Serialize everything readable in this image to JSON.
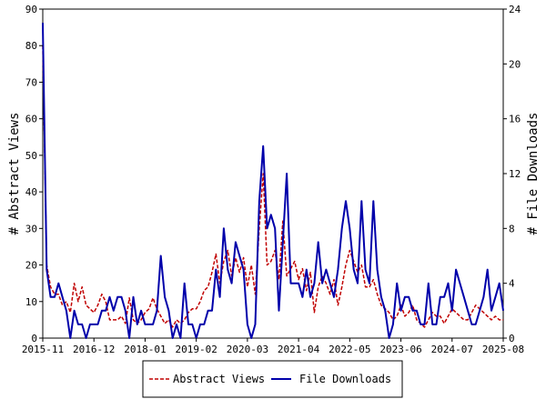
{
  "chart_data": {
    "type": "line",
    "title": "",
    "y_left_label": "# Abstract Views",
    "y_right_label": "# File Downloads",
    "y_left_ticks": [
      0,
      10,
      20,
      30,
      40,
      50,
      60,
      70,
      80,
      90
    ],
    "y_left_range": [
      0,
      90
    ],
    "y_right_ticks": [
      0,
      4,
      8,
      12,
      16,
      20,
      24
    ],
    "y_right_range": [
      0,
      24
    ],
    "x_tick_labels": [
      "2015-11",
      "2016-12",
      "2018-01",
      "2019-02",
      "2020-03",
      "2021-04",
      "2022-05",
      "2023-06",
      "2024-07",
      "2025-08"
    ],
    "x_range_months": [
      0,
      117
    ],
    "legend_position": "bottom",
    "grid": false,
    "series": [
      {
        "name": "Abstract Views",
        "axis": "left",
        "color": "#c00000",
        "style": "dashed",
        "x": [
          0,
          1,
          2,
          3,
          4,
          5,
          6,
          7,
          8,
          9,
          10,
          11,
          12,
          13,
          14,
          15,
          16,
          17,
          18,
          19,
          20,
          21,
          22,
          23,
          24,
          25,
          26,
          27,
          28,
          29,
          30,
          31,
          32,
          33,
          34,
          35,
          36,
          37,
          38,
          39,
          40,
          41,
          42,
          43,
          44,
          45,
          46,
          47,
          48,
          49,
          50,
          51,
          52,
          53,
          54,
          55,
          56,
          57,
          58,
          59,
          60,
          61,
          62,
          63,
          64,
          65,
          66,
          67,
          68,
          69,
          70,
          71,
          72,
          73,
          74,
          75,
          76,
          77,
          78,
          79,
          80,
          81,
          82,
          83,
          84,
          85,
          86,
          87,
          88,
          89,
          90,
          91,
          92,
          93,
          94,
          95,
          96,
          97,
          98,
          99,
          100,
          101,
          102,
          103,
          104,
          105,
          106,
          107,
          108,
          109,
          110,
          111,
          112,
          113,
          114,
          115,
          116,
          117
        ],
        "values": [
          80,
          20,
          14,
          12,
          12,
          9,
          10,
          7,
          15,
          10,
          14,
          9,
          8,
          7,
          9,
          12,
          10,
          5,
          5,
          5,
          6,
          4,
          11,
          5,
          4,
          5,
          7,
          8,
          11,
          8,
          6,
          4,
          5,
          3,
          5,
          4,
          5,
          7,
          8,
          8,
          10,
          13,
          14,
          18,
          23,
          15,
          21,
          24,
          17,
          22,
          18,
          22,
          14,
          20,
          12,
          30,
          45,
          20,
          21,
          24,
          16,
          32,
          17,
          19,
          21,
          16,
          19,
          13,
          18,
          7,
          14,
          17,
          15,
          12,
          16,
          9,
          14,
          20,
          24,
          21,
          18,
          20,
          14,
          14,
          16,
          12,
          9,
          8,
          7,
          5,
          6,
          9,
          6,
          7,
          9,
          5,
          4,
          3,
          5,
          7,
          6,
          6,
          4,
          6,
          8,
          7,
          6,
          5,
          5,
          7,
          9,
          8,
          7,
          6,
          5,
          6,
          5,
          5
        ]
      },
      {
        "name": "File Downloads",
        "axis": "right",
        "color": "#0000aa",
        "style": "solid",
        "x": [
          0,
          1,
          2,
          3,
          4,
          5,
          6,
          7,
          8,
          9,
          10,
          11,
          12,
          13,
          14,
          15,
          16,
          17,
          18,
          19,
          20,
          21,
          22,
          23,
          24,
          25,
          26,
          27,
          28,
          29,
          30,
          31,
          32,
          33,
          34,
          35,
          36,
          37,
          38,
          39,
          40,
          41,
          42,
          43,
          44,
          45,
          46,
          47,
          48,
          49,
          50,
          51,
          52,
          53,
          54,
          55,
          56,
          57,
          58,
          59,
          60,
          61,
          62,
          63,
          64,
          65,
          66,
          67,
          68,
          69,
          70,
          71,
          72,
          73,
          74,
          75,
          76,
          77,
          78,
          79,
          80,
          81,
          82,
          83,
          84,
          85,
          86,
          87,
          88,
          89,
          90,
          91,
          92,
          93,
          94,
          95,
          96,
          97,
          98,
          99,
          100,
          101,
          102,
          103,
          104,
          105,
          106,
          107,
          108,
          109,
          110,
          111,
          112,
          113,
          114,
          115,
          116,
          117
        ],
        "values": [
          23,
          5,
          3,
          3,
          4,
          3,
          2,
          0,
          2,
          1,
          1,
          0,
          1,
          1,
          1,
          2,
          2,
          3,
          2,
          3,
          3,
          2,
          0,
          3,
          1,
          2,
          1,
          1,
          1,
          2,
          6,
          3,
          2,
          0,
          1,
          0,
          4,
          1,
          1,
          0,
          1,
          1,
          2,
          2,
          5,
          3,
          8,
          5,
          4,
          7,
          6,
          5,
          1,
          0,
          1,
          10,
          14,
          8,
          9,
          8,
          2,
          7,
          12,
          4,
          4,
          4,
          3,
          5,
          3,
          4,
          7,
          4,
          5,
          4,
          3,
          5,
          8,
          10,
          8,
          5,
          4,
          10,
          5,
          4,
          10,
          5,
          3,
          2,
          0,
          1,
          4,
          2,
          3,
          3,
          2,
          2,
          1,
          1,
          4,
          1,
          1,
          3,
          3,
          4,
          2,
          5,
          4,
          3,
          2,
          1,
          1,
          2,
          3,
          5,
          2,
          3,
          4,
          2
        ],
        "_note": "values in file-download units (right axis)"
      }
    ]
  }
}
